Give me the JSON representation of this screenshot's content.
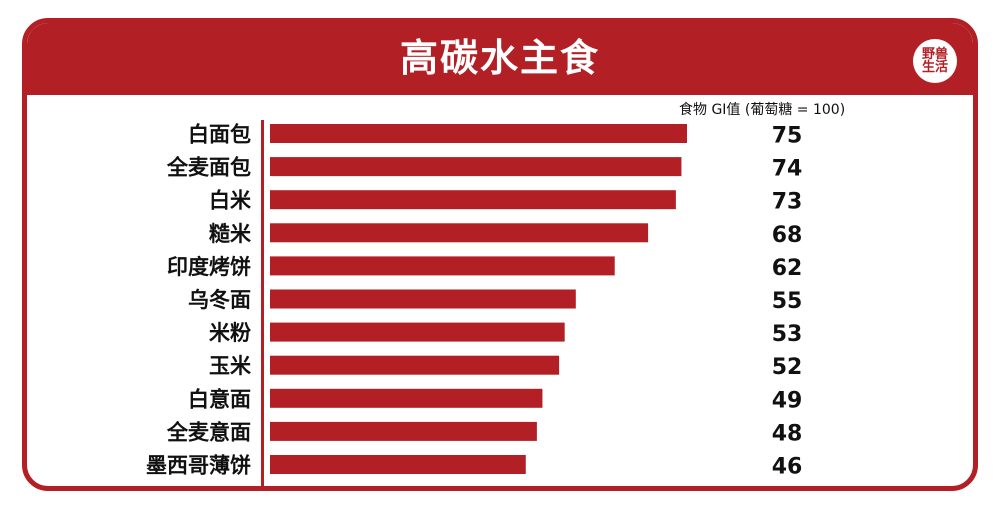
{
  "header": {
    "title": "高碳水主食",
    "logo_text": "野兽生活"
  },
  "chart_data": {
    "type": "bar",
    "orientation": "horizontal",
    "title": "高碳水主食",
    "value_header": "食物 GI值 (葡萄糖 = 100)",
    "categories": [
      "白面包",
      "全麦面包",
      "白米",
      "糙米",
      "印度烤饼",
      "乌冬面",
      "米粉",
      "玉米",
      "白意面",
      "全麦意面",
      "墨西哥薄饼"
    ],
    "values": [
      75,
      74,
      73,
      68,
      62,
      55,
      53,
      52,
      49,
      48,
      46
    ],
    "bar_color": "#b21f24",
    "xlim": [
      0,
      75
    ]
  },
  "colors": {
    "accent": "#b21f24",
    "text": "#111111"
  }
}
